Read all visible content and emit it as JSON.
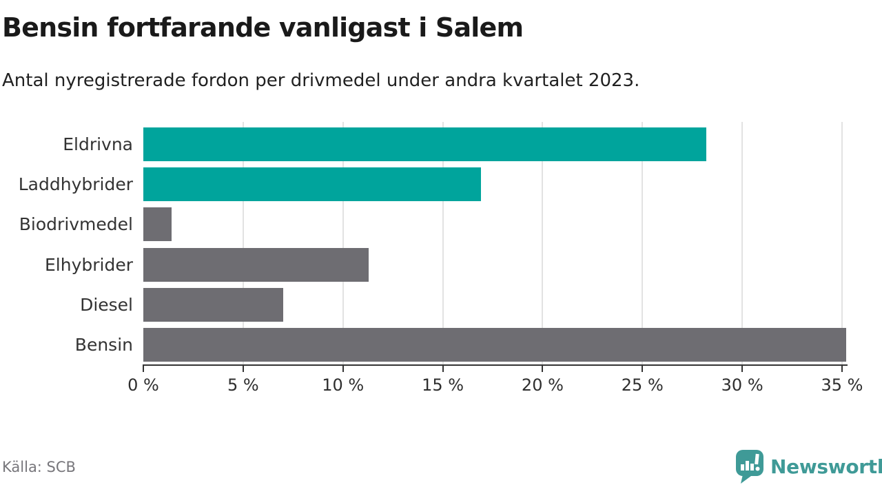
{
  "chart_data": {
    "type": "bar",
    "orientation": "horizontal",
    "title": "Bensin fortfarande vanligast i Salem",
    "subtitle": "Antal nyregistrerade fordon per drivmedel under andra kvartalet 2023.",
    "categories": [
      "Eldrivna",
      "Laddhybrider",
      "Biodrivmedel",
      "Elhybrider",
      "Diesel",
      "Bensin"
    ],
    "values": [
      28.2,
      16.9,
      1.4,
      11.3,
      7.0,
      35.2
    ],
    "unit": "%",
    "xlim": [
      0,
      35
    ],
    "x_ticks": [
      {
        "value": 0,
        "label": "0 %"
      },
      {
        "value": 5,
        "label": "5 %"
      },
      {
        "value": 10,
        "label": "10 %"
      },
      {
        "value": 15,
        "label": "15 %"
      },
      {
        "value": 20,
        "label": "20 %"
      },
      {
        "value": 25,
        "label": "25 %"
      },
      {
        "value": 30,
        "label": "30 %"
      },
      {
        "value": 35,
        "label": "35 %"
      }
    ],
    "bar_colors": [
      "#00a49c",
      "#00a49c",
      "#6e6d72",
      "#6e6d72",
      "#6e6d72",
      "#6e6d72"
    ],
    "grid": true,
    "legend": "none"
  },
  "footer": {
    "source": "Källa: SCB",
    "brand": "Newsworthy"
  },
  "colors": {
    "highlight": "#00a49c",
    "base": "#6e6d72",
    "brand": "#3f9a97",
    "axis": "#333333",
    "gridline": "#e2e2e2"
  }
}
